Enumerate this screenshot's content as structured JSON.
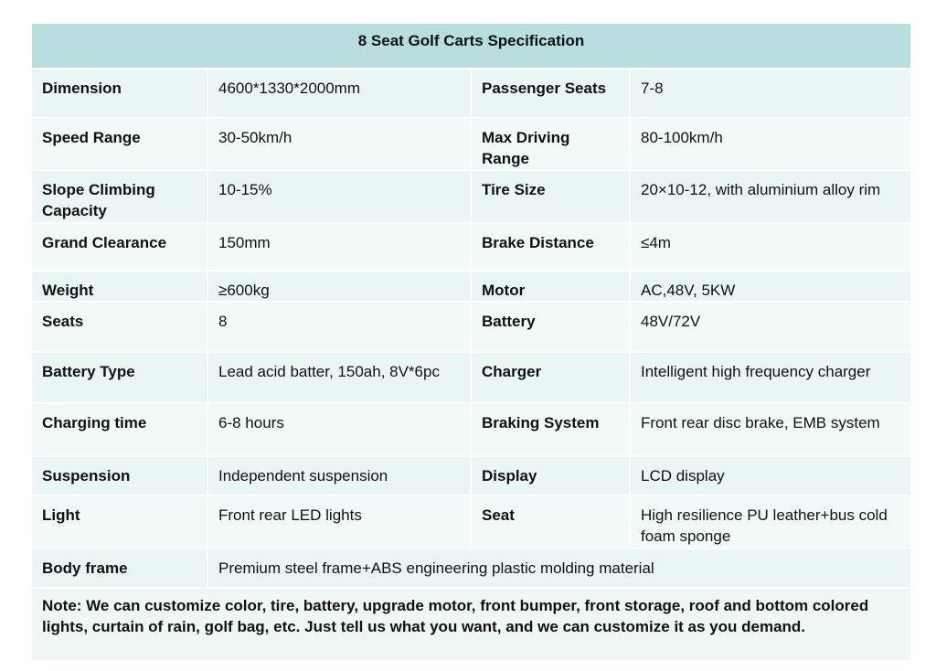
{
  "table": {
    "title": "8 Seat Golf Carts Specification",
    "rows": [
      [
        "Dimension",
        "4600*1330*2000mm",
        "Passenger Seats",
        "7-8"
      ],
      [
        "Speed Range",
        "30-50km/h",
        "Max Driving Range",
        "80-100km/h"
      ],
      [
        "Slope Climbing Capacity",
        "10-15%",
        "Tire Size",
        "20×10-12, with aluminium alloy rim"
      ],
      [
        "Grand Clearance",
        "150mm",
        "Brake Distance",
        "≤4m"
      ],
      [
        "Weight",
        "≥600kg",
        "Motor",
        "AC,48V, 5KW"
      ],
      [
        "Seats",
        "8",
        "Battery",
        "48V/72V"
      ],
      [
        "Battery Type",
        "Lead acid batter, 150ah, 8V*6pc",
        "Charger",
        "Intelligent high frequency charger"
      ],
      [
        "Charging time",
        "6-8 hours",
        "Braking System",
        "Front rear disc brake, EMB system"
      ],
      [
        "Suspension",
        "Independent suspension",
        "Display",
        "LCD display"
      ],
      [
        "Light",
        "Front rear LED lights",
        "Seat",
        "High resilience PU leather+bus cold foam sponge"
      ],
      [
        "Body frame",
        "Premium steel frame+ABS engineering plastic molding material"
      ]
    ],
    "note": "Note: We can customize color, tire, battery, upgrade motor, front bumper,  front storage, roof and bottom colored lights, curtain of rain, golf bag, etc. Just tell us what you want, and we can customize it as you demand."
  }
}
